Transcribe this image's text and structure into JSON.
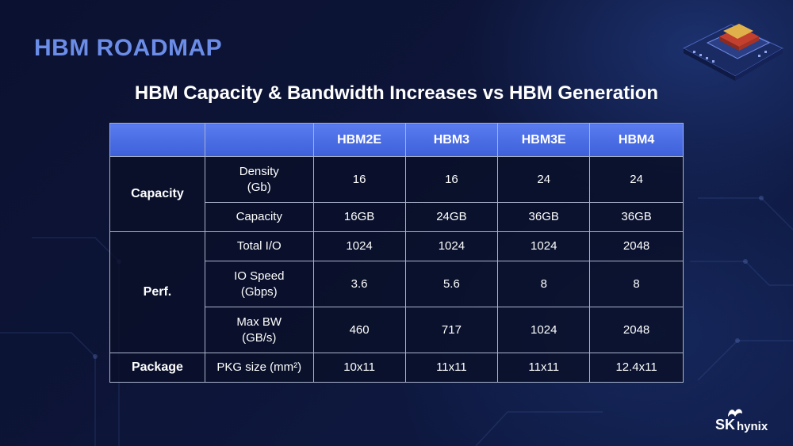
{
  "slide": {
    "title": "HBM ROADMAP",
    "subtitle": "HBM Capacity & Bandwidth Increases vs HBM Generation"
  },
  "table": {
    "headers": [
      "",
      "",
      "HBM2E",
      "HBM3",
      "HBM3E",
      "HBM4"
    ],
    "groups": {
      "capacity": "Capacity",
      "perf": "Perf.",
      "package": "Package"
    },
    "rows": [
      {
        "metric": "Density\n(Gb)",
        "values": [
          "16",
          "16",
          "24",
          "24"
        ]
      },
      {
        "metric": "Capacity",
        "values": [
          "16GB",
          "24GB",
          "36GB",
          "36GB"
        ]
      },
      {
        "metric": "Total I/O",
        "values": [
          "1024",
          "1024",
          "1024",
          "2048"
        ]
      },
      {
        "metric": "IO Speed\n(Gbps)",
        "values": [
          "3.6",
          "5.6",
          "8",
          "8"
        ]
      },
      {
        "metric": "Max BW\n(GB/s)",
        "values": [
          "460",
          "717",
          "1024",
          "2048"
        ]
      },
      {
        "metric": "PKG size (mm²)",
        "values": [
          "10x11",
          "11x11",
          "11x11",
          "12.4x11"
        ]
      }
    ]
  },
  "brand": {
    "logo_sk": "SK",
    "logo_hynix": "hynix",
    "accent_color": "#6b8de8",
    "header_color": "#4a6ee6"
  }
}
